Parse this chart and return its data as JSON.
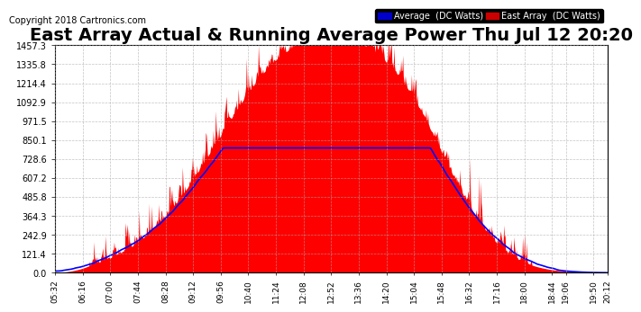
{
  "title": "East Array Actual & Running Average Power Thu Jul 12 20:20",
  "copyright": "Copyright 2018 Cartronics.com",
  "yticks": [
    0.0,
    121.4,
    242.9,
    364.3,
    485.8,
    607.2,
    728.6,
    850.1,
    971.5,
    1092.9,
    1214.4,
    1335.8,
    1457.3
  ],
  "ylim": [
    0,
    1457.3
  ],
  "background_color": "#ffffff",
  "plot_bg_color": "#ffffff",
  "grid_color": "#aaaaaa",
  "area_color": "#ff0000",
  "avg_color": "#0000ff",
  "title_fontsize": 14,
  "copyright_fontsize": 7,
  "legend_avg_bg": "#0000cc",
  "legend_east_bg": "#cc0000",
  "legend_text_color": "#ffffff"
}
